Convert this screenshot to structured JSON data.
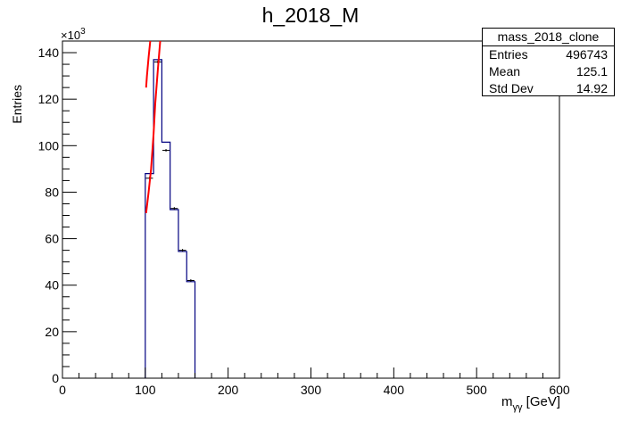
{
  "chart_data": {
    "type": "bar",
    "title": "h_2018_M",
    "xlabel": "m_{γγ} [GeV]",
    "xlabel_main": "m",
    "xlabel_sub": "γγ",
    "xlabel_unit": " [GeV]",
    "ylabel": "Entries",
    "y_multiplier": "×10",
    "y_multiplier_exp": "3",
    "xlim": [
      0,
      600
    ],
    "ylim": [
      0,
      145000
    ],
    "x_ticks": [
      0,
      100,
      200,
      300,
      400,
      500,
      600
    ],
    "y_ticks": [
      0,
      20,
      40,
      60,
      80,
      100,
      120,
      140
    ],
    "series": [
      {
        "type": "histogram",
        "color": "#000080",
        "bin_edges": [
          100,
          110,
          120,
          130,
          140,
          150,
          160
        ],
        "values": [
          88000,
          137000,
          101500,
          72500,
          54500,
          41500
        ]
      },
      {
        "type": "points",
        "color": "#000000",
        "x": [
          105,
          115,
          125,
          135,
          145,
          155
        ],
        "y": [
          86000,
          136000,
          98000,
          73000,
          55000,
          42000
        ]
      },
      {
        "type": "fit",
        "color": "#ff0000",
        "segments": [
          [
            [
              101,
              71000
            ],
            [
              104,
              80000
            ],
            [
              107,
              90000
            ],
            [
              110,
              105000
            ],
            [
              112,
              118000
            ],
            [
              115,
              132000
            ],
            [
              118,
              145000
            ]
          ],
          [
            [
              101,
              125000
            ],
            [
              102,
              130000
            ],
            [
              104,
              138000
            ],
            [
              106,
              145000
            ]
          ]
        ]
      }
    ],
    "stats_box": {
      "name": "mass_2018_clone",
      "rows": [
        {
          "label": "Entries",
          "value": "496743"
        },
        {
          "label": "Mean",
          "value": "125.1"
        },
        {
          "label": "Std Dev",
          "value": "14.92"
        }
      ]
    },
    "grid": false
  }
}
